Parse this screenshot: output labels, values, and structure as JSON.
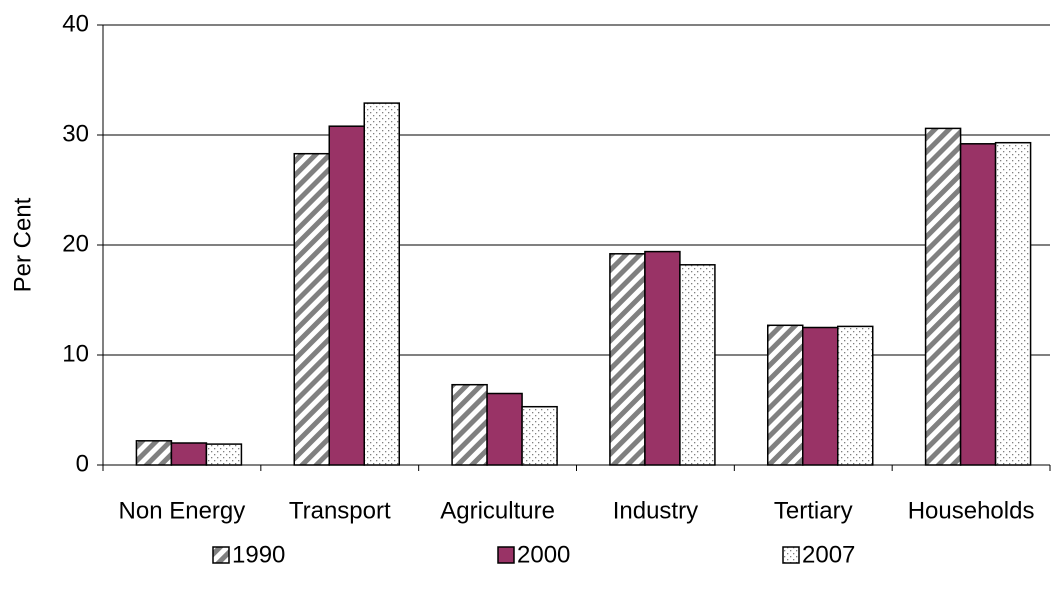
{
  "chart_data": {
    "type": "bar",
    "y_label": "Per Cent",
    "categories": [
      "Non Energy",
      "Transport",
      "Agriculture",
      "Industry",
      "Tertiary",
      "Households"
    ],
    "series": [
      {
        "name": "1990",
        "color": "#808080",
        "pattern": "diagonal",
        "values": [
          2.2,
          28.3,
          7.3,
          19.2,
          12.7,
          30.6
        ]
      },
      {
        "name": "2000",
        "color": "#993366",
        "pattern": "solid",
        "values": [
          2.0,
          30.8,
          6.5,
          19.4,
          12.5,
          29.2
        ]
      },
      {
        "name": "2007",
        "color": "#808080",
        "pattern": "dots",
        "values": [
          1.9,
          32.9,
          5.3,
          18.2,
          12.6,
          29.3
        ]
      }
    ],
    "ylim": [
      0,
      40
    ],
    "yticks": [
      0,
      10,
      20,
      30,
      40
    ],
    "grid": true
  }
}
